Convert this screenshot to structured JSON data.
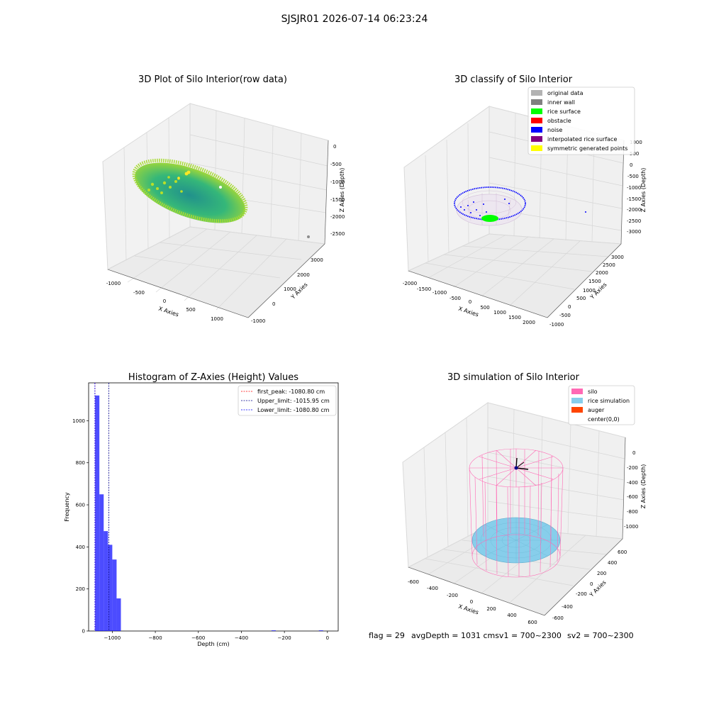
{
  "suptitle": "SJSJR01 2026-07-14 06:23:24",
  "footer": {
    "flag": "flag = 29",
    "avg": "avgDepth = 1031 cmsv1 = 700~2300",
    "sv2": "sv2 = 700~2300"
  },
  "colors": {
    "viridis": [
      "#440154",
      "#3b528b",
      "#21918c",
      "#5ec962",
      "#fde725"
    ],
    "grid": "#d9d9d9",
    "pane": "#f2f2f2",
    "hist_bar": "#0000ff",
    "silo": "#ff69b4",
    "rice": "#87ceeb",
    "auger": "#ff4500"
  },
  "chart_data": [
    {
      "type": "scatter",
      "kind": "3d",
      "title": "3D Plot of Silo Interior(row data)",
      "xlabel": "X Axies",
      "ylabel": "Y Axies",
      "zlabel": "Z Axies (Depth)",
      "xticks": [
        "-1000",
        "-500",
        "0",
        "500",
        "1000"
      ],
      "yticks": [
        "-1000",
        "0",
        "1000",
        "2000",
        "3000"
      ],
      "zticks": [
        "0",
        "-500",
        "-1000",
        "-1500",
        "-2000",
        "-2500"
      ],
      "xlim": [
        -1300,
        1300
      ],
      "ylim": [
        -1100,
        3400
      ],
      "zlim": [
        -2700,
        100
      ],
      "colormap": "viridis",
      "surface": {
        "shape": "bowl",
        "center": [
          0,
          0
        ],
        "radius": 1050,
        "rim_depth": -1000,
        "bottom_depth": -1450
      },
      "outliers": [
        {
          "x": 0,
          "y": 3300,
          "z": -2600
        }
      ]
    },
    {
      "type": "scatter",
      "kind": "3d",
      "title": "3D classify of Silo Interior",
      "xlabel": "X Axies",
      "ylabel": "Y Axies",
      "zlabel": "Z Axies (Depth)",
      "xticks": [
        "-2000",
        "-1500",
        "-1000",
        "-500",
        "0",
        "500",
        "1000",
        "1500",
        "2000"
      ],
      "yticks": [
        "-1000",
        "-500",
        "0",
        "500",
        "1000",
        "1500",
        "2000",
        "2500",
        "3000"
      ],
      "zticks": [
        "1000",
        "500",
        "0",
        "-500",
        "-1000",
        "-1500",
        "-2000",
        "-2500",
        "-3000"
      ],
      "xlim": [
        -2100,
        2100
      ],
      "ylim": [
        -1100,
        3300
      ],
      "zlim": [
        -3200,
        1200
      ],
      "legend": [
        {
          "label": "original data",
          "color": "#b3b3b3"
        },
        {
          "label": "inner wall",
          "color": "#808080"
        },
        {
          "label": "rice surface",
          "color": "#00ff00"
        },
        {
          "label": "obstacle",
          "color": "#ff0000"
        },
        {
          "label": "noise",
          "color": "#0000ff"
        },
        {
          "label": "interpolated rice surface",
          "color": "#800080"
        },
        {
          "label": "symmetric generated points",
          "color": "#ffff00"
        }
      ],
      "legend_loc": "upper right"
    },
    {
      "type": "bar",
      "kind": "histogram",
      "title": "Histogram of Z-Axies (Height) Values",
      "xlabel": "Depth (cm)",
      "ylabel": "Frequency",
      "xlim": [
        -1110,
        50
      ],
      "ylim": [
        0,
        1180
      ],
      "xticks": [
        -1000,
        -800,
        -600,
        -400,
        -200,
        0
      ],
      "xtick_labels": [
        "−1000",
        "−800",
        "−600",
        "−400",
        "−200",
        "0"
      ],
      "yticks": [
        0,
        200,
        400,
        600,
        800,
        1000
      ],
      "bin_width": 20,
      "bins": [
        {
          "start": -1080,
          "count": 1120
        },
        {
          "start": -1060,
          "count": 650
        },
        {
          "start": -1040,
          "count": 475
        },
        {
          "start": -1020,
          "count": 410
        },
        {
          "start": -1000,
          "count": 340
        },
        {
          "start": -980,
          "count": 155
        },
        {
          "start": -260,
          "count": 3
        },
        {
          "start": -40,
          "count": 3
        }
      ],
      "lines": [
        {
          "label": "first_peak: -1080.80 cm",
          "x": -1080.8,
          "color": "#ff0000"
        },
        {
          "label": "Upper_limit: -1015.95 cm",
          "x": -1015.95,
          "color": "#00008b"
        },
        {
          "label": "Lower_limit: -1080.80 cm",
          "x": -1080.8,
          "color": "#0000ff"
        }
      ],
      "legend_loc": "upper right"
    },
    {
      "type": "scatter",
      "kind": "3d",
      "title": "3D simulation of Silo Interior",
      "xlabel": "X Axies",
      "ylabel": "Y Axies",
      "zlabel": "Z Axies (Depth)",
      "xticks": [
        "-600",
        "-400",
        "-200",
        "0",
        "200",
        "400",
        "600"
      ],
      "yticks": [
        "-600",
        "-400",
        "-200",
        "0",
        "200",
        "400",
        "600"
      ],
      "zticks": [
        "0",
        "-200",
        "-400",
        "-600",
        "-800",
        "-1000"
      ],
      "xlim": [
        -700,
        700
      ],
      "ylim": [
        -700,
        700
      ],
      "zlim": [
        -1200,
        100
      ],
      "silo": {
        "radius": 500,
        "top": 0,
        "bottom": -1200
      },
      "rice_surface_depth": -1031,
      "legend": [
        {
          "label": "silo",
          "color": "#ff69b4"
        },
        {
          "label": "rice simulation",
          "color": "#87ceeb"
        },
        {
          "label": "auger",
          "color": "#ff4500"
        },
        {
          "label": "center(0,0)",
          "color": ""
        }
      ],
      "legend_loc": "upper right"
    }
  ]
}
